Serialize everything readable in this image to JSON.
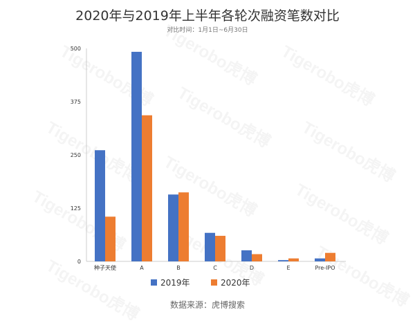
{
  "chart_data": {
    "type": "bar",
    "title": "2020年与2019年上半年各轮次融资笔数对比",
    "subtitle": "对比时间：1月1日~6月30日",
    "categories": [
      "种子天使",
      "A",
      "B",
      "C",
      "D",
      "E",
      "Pre-IPO"
    ],
    "series": [
      {
        "name": "2019年",
        "color": "#4472C4",
        "values": [
          261,
          492,
          157,
          67,
          26,
          3,
          7
        ]
      },
      {
        "name": "2020年",
        "color": "#ED7D31",
        "values": [
          105,
          343,
          162,
          60,
          17,
          7,
          20
        ]
      }
    ],
    "ylim": [
      0,
      500
    ],
    "yticks": [
      0,
      125,
      250,
      375,
      500
    ],
    "grid": false,
    "legend": "bottom",
    "xlabel": "",
    "ylabel": ""
  },
  "source": "数据来源：虎博搜索",
  "watermark": "Tigerobo虎博"
}
